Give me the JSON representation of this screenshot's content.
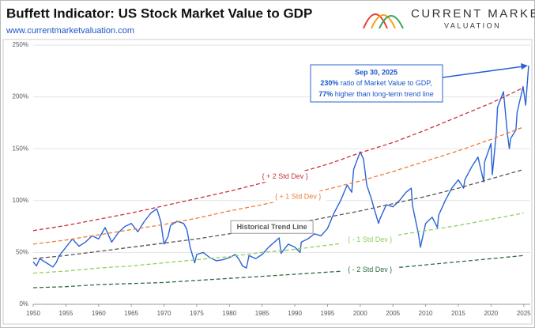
{
  "header": {
    "title": "Buffett Indicator: US Stock Market Value to GDP",
    "url": "www.currentmarketvaluation.com",
    "logo_line1": "CURRENT MARKET",
    "logo_line2": "VALUATION"
  },
  "chart_data": {
    "type": "line",
    "xlim": [
      1950,
      2026
    ],
    "xticks": [
      1950,
      1955,
      1960,
      1965,
      1970,
      1975,
      1980,
      1985,
      1990,
      1995,
      2000,
      2005,
      2010,
      2015,
      2020,
      2025
    ],
    "ylim": [
      0,
      250
    ],
    "yticks": [
      {
        "value": 0,
        "label": "0%"
      },
      {
        "value": 50,
        "label": "50%"
      },
      {
        "value": 100,
        "label": "100%"
      },
      {
        "value": 150,
        "label": "150%"
      },
      {
        "value": 200,
        "label": "200%"
      },
      {
        "value": 250,
        "label": "250%"
      }
    ],
    "grid": true,
    "series": [
      {
        "color": "#2a63d6",
        "style": "solid",
        "x": [
          1950,
          1950.5,
          1951,
          1952,
          1953,
          1953.5,
          1954,
          1955,
          1956,
          1957,
          1958,
          1959,
          1960,
          1961,
          1962,
          1963,
          1964,
          1965,
          1966,
          1967,
          1968,
          1968.9,
          1969.5,
          1970,
          1970.6,
          1971,
          1972,
          1973,
          1973.5,
          1974,
          1974.7,
          1975,
          1976,
          1977,
          1978,
          1979,
          1980,
          1980.9,
          1981.5,
          1982,
          1982.6,
          1983,
          1984,
          1985,
          1986,
          1987.6,
          1987.9,
          1988,
          1989,
          1990,
          1990.8,
          1991,
          1992,
          1993,
          1994,
          1995,
          1996,
          1997,
          1998,
          1998.7,
          1999,
          2000,
          2000.5,
          2001,
          2001.8,
          2002,
          2002.8,
          2003,
          2004,
          2005,
          2006,
          2007,
          2007.8,
          2008,
          2008.9,
          2009.2,
          2010,
          2011,
          2011.8,
          2012,
          2013,
          2014,
          2015,
          2015.8,
          2016,
          2017,
          2018,
          2018.9,
          2019,
          2020,
          2020.2,
          2020.8,
          2021,
          2021.9,
          2022.5,
          2022.8,
          2023,
          2023.8,
          2024,
          2024.9,
          2025.3,
          2025.75
        ],
        "values": [
          41,
          37,
          44,
          40,
          36,
          40,
          47,
          55,
          63,
          56,
          60,
          66,
          63,
          74,
          60,
          69,
          75,
          78,
          70,
          80,
          88,
          92,
          80,
          58,
          65,
          76,
          80,
          78,
          72,
          55,
          40,
          48,
          50,
          45,
          42,
          43,
          45,
          48,
          43,
          37,
          35,
          47,
          44,
          48,
          55,
          64,
          49,
          50,
          58,
          55,
          50,
          60,
          63,
          68,
          66,
          73,
          88,
          100,
          115,
          108,
          130,
          147,
          140,
          115,
          100,
          95,
          78,
          82,
          96,
          94,
          100,
          108,
          112,
          95,
          68,
          55,
          78,
          84,
          74,
          86,
          100,
          112,
          120,
          112,
          120,
          132,
          142,
          118,
          137,
          155,
          125,
          165,
          190,
          205,
          165,
          150,
          160,
          168,
          185,
          210,
          192,
          230
        ]
      },
      {
        "name": "{ + 2 Std Dev }",
        "color": "#c8303a",
        "style": "dashed",
        "x": [
          1950,
          1955,
          1960,
          1965,
          1970,
          1975,
          1980,
          1985,
          1990,
          1995,
          2000,
          2005,
          2010,
          2015,
          2020,
          2025
        ],
        "values": [
          71,
          76,
          82,
          88,
          95,
          102,
          109,
          117,
          126,
          135,
          146,
          156,
          168,
          181,
          194,
          209
        ]
      },
      {
        "name": "{ + 1 Std Dev }",
        "color": "#f07b35",
        "style": "dashed",
        "x": [
          1950,
          1955,
          1960,
          1965,
          1970,
          1975,
          1980,
          1985,
          1990,
          1995,
          2000,
          2005,
          2010,
          2015,
          2020,
          2025
        ],
        "values": [
          58,
          62,
          67,
          72,
          77,
          83,
          90,
          96,
          103,
          111,
          119,
          128,
          138,
          148,
          159,
          171
        ]
      },
      {
        "name": "Historical Trend Line",
        "color": "#555555",
        "style": "dashed",
        "x": [
          1950,
          1955,
          1960,
          1965,
          1970,
          1975,
          1980,
          1985,
          1990,
          1995,
          2000,
          2005,
          2010,
          2015,
          2020,
          2025
        ],
        "values": [
          44,
          47,
          51,
          55,
          59,
          63,
          68,
          73,
          78,
          84,
          90,
          97,
          104,
          112,
          121,
          130
        ]
      },
      {
        "name": "{ - 1 Std Dev }",
        "color": "#8fcf5e",
        "style": "dashed",
        "x": [
          1950,
          1955,
          1960,
          1965,
          1970,
          1975,
          1980,
          1985,
          1990,
          1995,
          2000,
          2005,
          2010,
          2015,
          2020,
          2025
        ],
        "values": [
          30,
          32,
          35,
          37,
          40,
          43,
          46,
          50,
          53,
          57,
          61,
          66,
          71,
          76,
          82,
          88
        ]
      },
      {
        "name": "{ - 2 Std Dev }",
        "color": "#2e6b3e",
        "style": "dashed",
        "x": [
          1950,
          1955,
          1960,
          1965,
          1970,
          1975,
          1980,
          1985,
          1990,
          1995,
          2000,
          2005,
          2010,
          2015,
          2020,
          2025
        ],
        "values": [
          16,
          17,
          19,
          20,
          21,
          23,
          25,
          27,
          29,
          31,
          33,
          35,
          38,
          41,
          44,
          47
        ]
      }
    ],
    "annotation": {
      "date": "Sep 30, 2025",
      "line1_bold": "230%",
      "line1": "ratio of Market Value to GDP,",
      "line2_bold": "77%",
      "line2": "higher than long-term trend line"
    }
  }
}
